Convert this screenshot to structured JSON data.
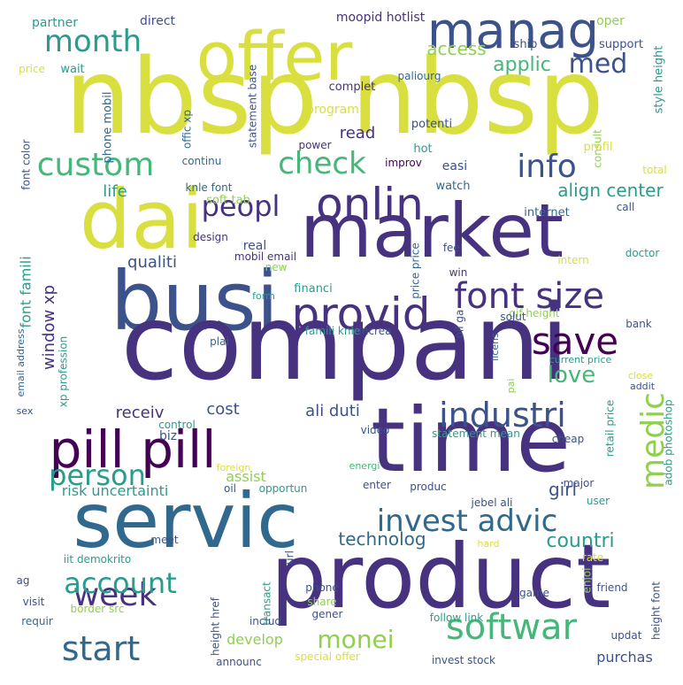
{
  "palette": {
    "yellow": "#d9df3f",
    "lime": "#8fd14f",
    "green": "#44b779",
    "teal": "#2a9c8c",
    "blue": "#31688e",
    "indigo": "#3b528b",
    "navy": "#46327e",
    "purple": "#440154"
  },
  "words": [
    {
      "text": "nbsp nbsp",
      "color": "yellow"
    },
    {
      "text": "offer",
      "color": "yellow"
    },
    {
      "text": "manag",
      "color": "indigo"
    },
    {
      "text": "dai",
      "color": "yellow"
    },
    {
      "text": "market",
      "color": "navy"
    },
    {
      "text": "busi",
      "color": "indigo"
    },
    {
      "text": "compani",
      "color": "navy"
    },
    {
      "text": "time",
      "color": "navy"
    },
    {
      "text": "servic",
      "color": "blue"
    },
    {
      "text": "product",
      "color": "navy"
    },
    {
      "text": "pill pill",
      "color": "purple"
    },
    {
      "text": "provid",
      "color": "navy"
    },
    {
      "text": "save",
      "color": "purple"
    },
    {
      "text": "onlin",
      "color": "navy"
    },
    {
      "text": "font size",
      "color": "navy"
    },
    {
      "text": "industri",
      "color": "indigo"
    },
    {
      "text": "softwar",
      "color": "green"
    },
    {
      "text": "invest advic",
      "color": "blue"
    },
    {
      "text": "medic",
      "color": "lime"
    },
    {
      "text": "month",
      "color": "teal"
    },
    {
      "text": "custom",
      "color": "green"
    },
    {
      "text": "check",
      "color": "green"
    },
    {
      "text": "info",
      "color": "indigo"
    },
    {
      "text": "peopl",
      "color": "navy"
    },
    {
      "text": "med",
      "color": "indigo"
    },
    {
      "text": "week",
      "color": "navy"
    },
    {
      "text": "account",
      "color": "teal"
    },
    {
      "text": "person",
      "color": "teal"
    },
    {
      "text": "start",
      "color": "blue"
    },
    {
      "text": "monei",
      "color": "lime"
    },
    {
      "text": "love",
      "color": "green"
    },
    {
      "text": "applic",
      "color": "green"
    },
    {
      "text": "access",
      "color": "lime"
    },
    {
      "text": "align center",
      "color": "teal"
    },
    {
      "text": "life",
      "color": "teal"
    },
    {
      "text": "qualiti",
      "color": "indigo"
    },
    {
      "text": "window xp",
      "color": "navy"
    },
    {
      "text": "receiv",
      "color": "navy"
    },
    {
      "text": "cost",
      "color": "indigo"
    },
    {
      "text": "ali duti",
      "color": "indigo"
    },
    {
      "text": "countri",
      "color": "teal"
    },
    {
      "text": "girl",
      "color": "indigo"
    },
    {
      "text": "technolog",
      "color": "blue"
    },
    {
      "text": "risk uncertainti",
      "color": "teal"
    },
    {
      "text": "read",
      "color": "navy"
    },
    {
      "text": "font famili",
      "color": "teal"
    },
    {
      "text": "biz",
      "color": "indigo"
    },
    {
      "text": "assist",
      "color": "lime"
    },
    {
      "text": "develop",
      "color": "lime"
    },
    {
      "text": "purchas",
      "color": "indigo"
    },
    {
      "text": "partner",
      "color": "teal"
    },
    {
      "text": "direct",
      "color": "indigo"
    },
    {
      "text": "moopid hotlist",
      "color": "navy"
    },
    {
      "text": "oper",
      "color": "lime"
    },
    {
      "text": "support",
      "color": "indigo"
    },
    {
      "text": "ship",
      "color": "indigo"
    },
    {
      "text": "price",
      "color": "yellow"
    },
    {
      "text": "wait",
      "color": "teal"
    },
    {
      "text": "phone mobil",
      "color": "blue"
    },
    {
      "text": "offic xp",
      "color": "blue"
    },
    {
      "text": "statement base",
      "color": "indigo"
    },
    {
      "text": "paliourg",
      "color": "blue"
    },
    {
      "text": "style height",
      "color": "teal"
    },
    {
      "text": "complet",
      "color": "navy"
    },
    {
      "text": "program",
      "color": "yellow"
    },
    {
      "text": "font color",
      "color": "indigo"
    },
    {
      "text": "potenti",
      "color": "indigo"
    },
    {
      "text": "consult",
      "color": "lime"
    },
    {
      "text": "profil",
      "color": "yellow"
    },
    {
      "text": "hot",
      "color": "teal"
    },
    {
      "text": "power",
      "color": "navy"
    },
    {
      "text": "continu",
      "color": "blue"
    },
    {
      "text": "improv",
      "color": "purple"
    },
    {
      "text": "easi",
      "color": "indigo"
    },
    {
      "text": "watch",
      "color": "blue"
    },
    {
      "text": "total",
      "color": "yellow"
    },
    {
      "text": "knle font",
      "color": "blue"
    },
    {
      "text": "call",
      "color": "indigo"
    },
    {
      "text": "soft tab",
      "color": "lime"
    },
    {
      "text": "internet",
      "color": "blue"
    },
    {
      "text": "design",
      "color": "navy"
    },
    {
      "text": "real",
      "color": "indigo"
    },
    {
      "text": "mobil email",
      "color": "navy"
    },
    {
      "text": "price price",
      "color": "blue"
    },
    {
      "text": "feel",
      "color": "indigo"
    },
    {
      "text": "doctor",
      "color": "teal"
    },
    {
      "text": "intern",
      "color": "yellow"
    },
    {
      "text": "form",
      "color": "teal"
    },
    {
      "text": "new",
      "color": "lime"
    },
    {
      "text": "win",
      "color": "navy"
    },
    {
      "text": "financi",
      "color": "teal"
    },
    {
      "text": "oil ga",
      "color": "indigo"
    },
    {
      "text": "gif height",
      "color": "lime"
    },
    {
      "text": "solut",
      "color": "indigo"
    },
    {
      "text": "bank",
      "color": "indigo"
    },
    {
      "text": "famili knle",
      "color": "teal"
    },
    {
      "text": "increa",
      "color": "indigo"
    },
    {
      "text": "licens",
      "color": "blue"
    },
    {
      "text": "xp profession",
      "color": "teal"
    },
    {
      "text": "email address",
      "color": "blue"
    },
    {
      "text": "plai",
      "color": "blue"
    },
    {
      "text": "current price",
      "color": "teal"
    },
    {
      "text": "pai",
      "color": "lime"
    },
    {
      "text": "close",
      "color": "yellow"
    },
    {
      "text": "addit",
      "color": "indigo"
    },
    {
      "text": "sex",
      "color": "indigo"
    },
    {
      "text": "control",
      "color": "teal"
    },
    {
      "text": "video",
      "color": "indigo"
    },
    {
      "text": "statement mean",
      "color": "teal"
    },
    {
      "text": "retail price",
      "color": "teal"
    },
    {
      "text": "adob photoshop",
      "color": "teal"
    },
    {
      "text": "cheap",
      "color": "indigo"
    },
    {
      "text": "foreign",
      "color": "yellow"
    },
    {
      "text": "energi",
      "color": "green"
    },
    {
      "text": "oil",
      "color": "indigo"
    },
    {
      "text": "opportun",
      "color": "teal"
    },
    {
      "text": "enter",
      "color": "indigo"
    },
    {
      "text": "produc",
      "color": "indigo"
    },
    {
      "text": "jebel ali",
      "color": "indigo"
    },
    {
      "text": "major",
      "color": "indigo"
    },
    {
      "text": "user",
      "color": "teal"
    },
    {
      "text": "meet",
      "color": "indigo"
    },
    {
      "text": "iit demokrito",
      "color": "teal"
    },
    {
      "text": "url",
      "color": "indigo"
    },
    {
      "text": "hard",
      "color": "yellow"
    },
    {
      "text": "ag",
      "color": "indigo"
    },
    {
      "text": "visit",
      "color": "indigo"
    },
    {
      "text": "border src",
      "color": "lime"
    },
    {
      "text": "height href",
      "color": "indigo"
    },
    {
      "text": "transact",
      "color": "teal"
    },
    {
      "text": "phone",
      "color": "indigo"
    },
    {
      "text": "share",
      "color": "lime"
    },
    {
      "text": "gener",
      "color": "indigo"
    },
    {
      "text": "game",
      "color": "indigo"
    },
    {
      "text": "rate",
      "color": "yellow"
    },
    {
      "text": "enjoi",
      "color": "lime"
    },
    {
      "text": "friend",
      "color": "indigo"
    },
    {
      "text": "height font",
      "color": "indigo"
    },
    {
      "text": "requir",
      "color": "blue"
    },
    {
      "text": "includ",
      "color": "indigo"
    },
    {
      "text": "follow link",
      "color": "teal"
    },
    {
      "text": "updat",
      "color": "indigo"
    },
    {
      "text": "announc",
      "color": "indigo"
    },
    {
      "text": "special offer",
      "color": "yellow"
    },
    {
      "text": "invest stock",
      "color": "indigo"
    }
  ]
}
